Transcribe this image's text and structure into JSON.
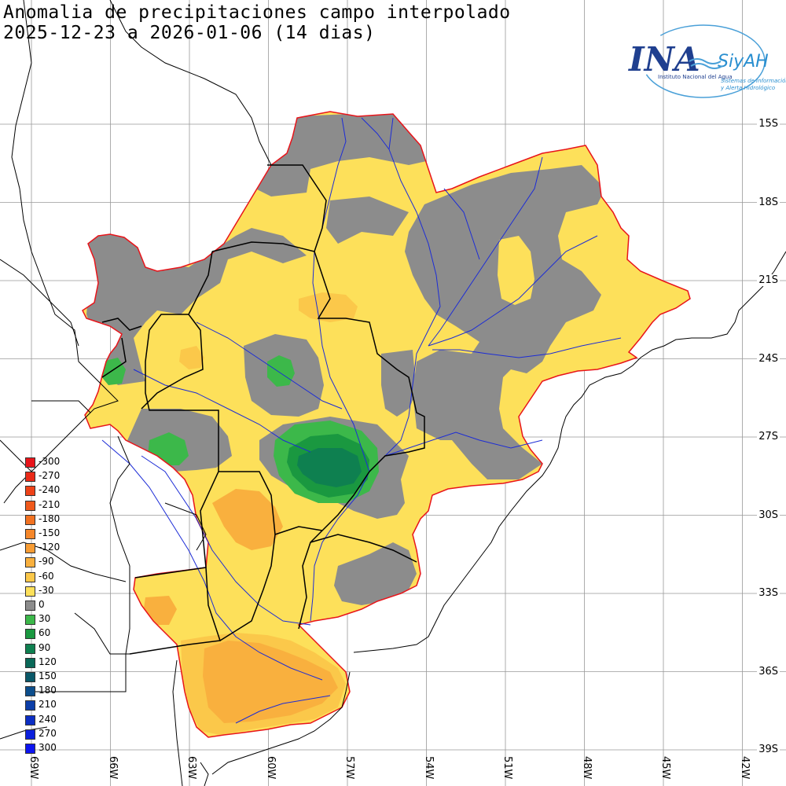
{
  "title": {
    "line1": "Anomalia de precipitaciones campo interpolado",
    "line2": "2025-12-23 a 2026-01-06 (14 dias)"
  },
  "logo": {
    "brand": "INA",
    "product": "SiyAH",
    "org": "Instituto Nacional del Agua",
    "tagline1": "Sistemas de Información",
    "tagline2": "y Alerta Hidrológico"
  },
  "latitude_labels": [
    "15S",
    "18S",
    "21S",
    "24S",
    "27S",
    "30S",
    "33S",
    "36S",
    "39S"
  ],
  "longitude_labels": [
    "69W",
    "66W",
    "63W",
    "60W",
    "57W",
    "54W",
    "51W",
    "48W",
    "45W",
    "42W"
  ],
  "legend": [
    {
      "value": "-300",
      "color": "#e8141a"
    },
    {
      "value": "-270",
      "color": "#ea2a18"
    },
    {
      "value": "-240",
      "color": "#ee4218"
    },
    {
      "value": "-210",
      "color": "#f05a1c"
    },
    {
      "value": "-180",
      "color": "#f27222"
    },
    {
      "value": "-150",
      "color": "#f5872a"
    },
    {
      "value": "-120",
      "color": "#f79c34"
    },
    {
      "value": "-90",
      "color": "#f9b03e"
    },
    {
      "value": "-60",
      "color": "#fbc84a"
    },
    {
      "value": "-30",
      "color": "#fde05a"
    },
    {
      "value": "0",
      "color": "#8c8c8c"
    },
    {
      "value": "30",
      "color": "#3cb84a"
    },
    {
      "value": "60",
      "color": "#1a9840"
    },
    {
      "value": "90",
      "color": "#0e8050"
    },
    {
      "value": "120",
      "color": "#0a6858"
    },
    {
      "value": "150",
      "color": "#0a5868"
    },
    {
      "value": "180",
      "color": "#0c4e8c"
    },
    {
      "value": "210",
      "color": "#0c3ea8"
    },
    {
      "value": "240",
      "color": "#0c2ec4"
    },
    {
      "value": "270",
      "color": "#0c20dc"
    },
    {
      "value": "300",
      "color": "#0c14f0"
    }
  ],
  "colors": {
    "basin_outline": "#e8141a",
    "rivers": "#1c2cd6",
    "borders": "#000000",
    "graticule": "#999999",
    "positive_30": "#3cb84a",
    "positive_60": "#1a9840",
    "positive_90": "#0e8050",
    "neutral": "#8c8c8c",
    "negative_30": "#fde05a",
    "negative_60": "#fbc84a",
    "negative_90": "#f9b03e",
    "negative_120": "#f79c34"
  }
}
